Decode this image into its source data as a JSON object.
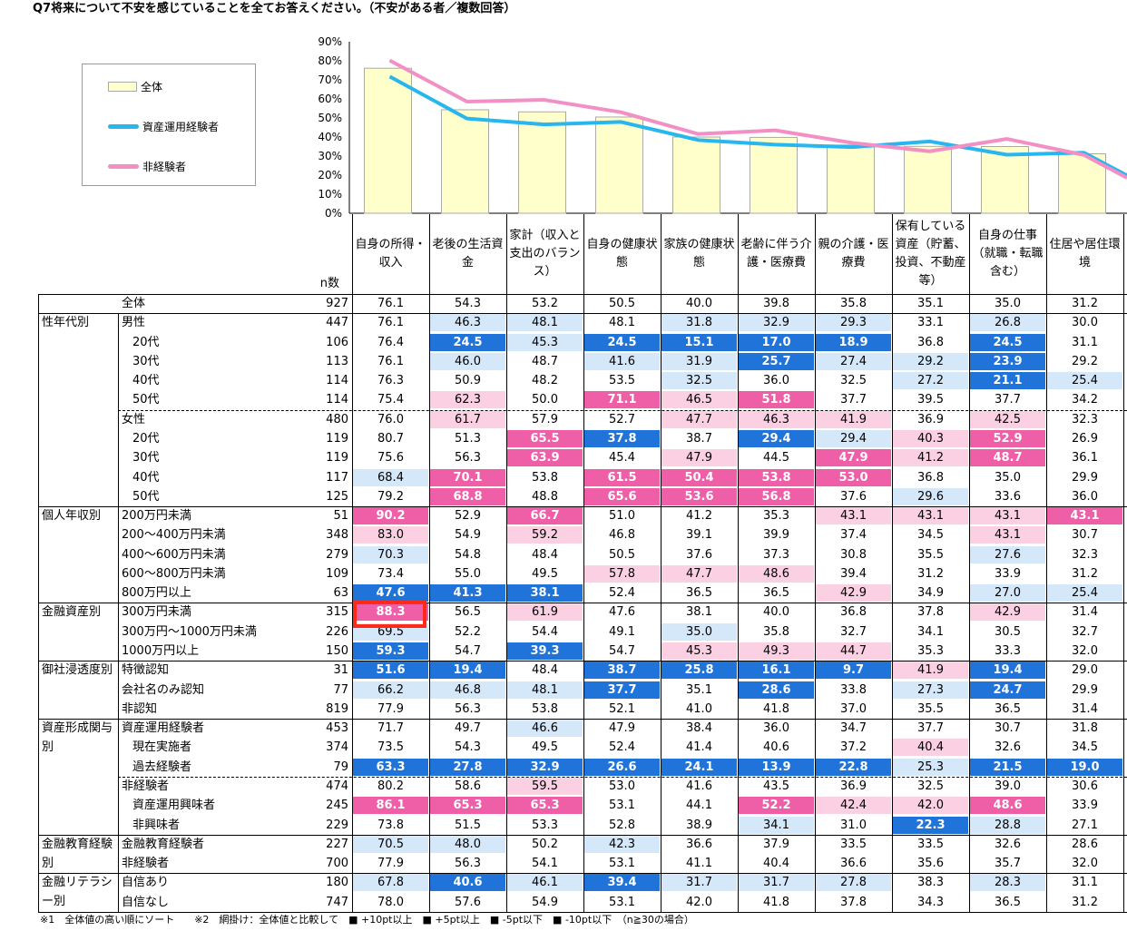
{
  "title": "Q7将来について不安を感じていることを全てお答えください。（不安がある者／複数回答）",
  "legend": {
    "all": "全体",
    "experienced": "資産運用経験者",
    "inexperienced": "非経験者"
  },
  "colors": {
    "bar": "#ffffcc",
    "experienced": "#28b6ef",
    "inexperienced": "#f28fc4",
    "hot1": "#ee5fa7",
    "hot2": "#fbd0e3",
    "cold1": "#d4e8fa",
    "cold2": "#1f73d9"
  },
  "chart_data": {
    "type": "bar",
    "categories": [
      "自身の所得・収入",
      "老後の生活資金",
      "家計（収入と支出のバランス）",
      "自身の健康状態",
      "家族の健康状態",
      "老齢に伴う介護・医療費",
      "親の介護・医療費",
      "保有している資産（貯蓄、投資、不動産等）",
      "自身の仕事（就職・転職含む）",
      "住居や居住環境"
    ],
    "y_ticks": [
      "0%",
      "10%",
      "20%",
      "30%",
      "40%",
      "50%",
      "60%",
      "70%",
      "80%",
      "90%"
    ],
    "ylim": [
      0,
      90
    ],
    "series": [
      {
        "name": "全体",
        "kind": "bar",
        "values": [
          76.1,
          54.3,
          53.2,
          50.5,
          40.0,
          39.8,
          35.8,
          35.1,
          35.0,
          31.2
        ]
      },
      {
        "name": "資産運用経験者",
        "kind": "line",
        "values": [
          71.7,
          49.7,
          46.6,
          47.9,
          38.4,
          36.0,
          34.7,
          37.7,
          30.7,
          31.8
        ]
      },
      {
        "name": "非経験者",
        "kind": "line",
        "values": [
          80.2,
          58.6,
          59.5,
          53.0,
          41.6,
          43.5,
          36.9,
          32.5,
          39.0,
          30.6
        ]
      }
    ]
  },
  "table": {
    "headers": [
      "自身の所得・収入",
      "老後の生活資金",
      "家計（収入と支出のバランス）",
      "自身の健康状態",
      "家族の健康状態",
      "老齢に伴う介護・医療費",
      "親の介護・医療費",
      "保有している資産（貯蓄、投資、不動産等）",
      "自身の仕事（就職・転職含む）",
      "住居や居住環境"
    ],
    "n_label": "n数",
    "rows": [
      {
        "seg": "",
        "sub": "全体",
        "n": "927",
        "v": [
          "76.1",
          "54.3",
          "53.2",
          "50.5",
          "40.0",
          "39.8",
          "35.8",
          "35.1",
          "35.0",
          "31.2"
        ],
        "s": [
          0,
          0,
          0,
          0,
          0,
          0,
          0,
          0,
          0,
          0
        ]
      },
      {
        "seg": "性年代別",
        "sub": "男性",
        "n": "447",
        "v": [
          "76.1",
          "46.3",
          "48.1",
          "48.1",
          "31.8",
          "32.9",
          "29.3",
          "33.1",
          "26.8",
          "30.0"
        ],
        "s": [
          0,
          3,
          3,
          0,
          3,
          3,
          3,
          0,
          3,
          0
        ]
      },
      {
        "seg": "",
        "sub": "20代",
        "n": "106",
        "v": [
          "76.4",
          "24.5",
          "45.3",
          "24.5",
          "15.1",
          "17.0",
          "18.9",
          "36.8",
          "24.5",
          "31.1"
        ],
        "s": [
          0,
          4,
          3,
          4,
          4,
          4,
          4,
          0,
          4,
          0
        ]
      },
      {
        "seg": "",
        "sub": "30代",
        "n": "113",
        "v": [
          "76.1",
          "46.0",
          "48.7",
          "41.6",
          "31.9",
          "25.7",
          "27.4",
          "29.2",
          "23.9",
          "29.2"
        ],
        "s": [
          0,
          3,
          0,
          3,
          3,
          4,
          3,
          3,
          4,
          0
        ]
      },
      {
        "seg": "",
        "sub": "40代",
        "n": "114",
        "v": [
          "76.3",
          "50.9",
          "48.2",
          "53.5",
          "32.5",
          "36.0",
          "32.5",
          "27.2",
          "21.1",
          "25.4"
        ],
        "s": [
          0,
          0,
          0,
          0,
          3,
          0,
          0,
          3,
          4,
          3
        ]
      },
      {
        "seg": "",
        "sub": "50代",
        "n": "114",
        "v": [
          "75.4",
          "62.3",
          "50.0",
          "71.1",
          "46.5",
          "51.8",
          "37.7",
          "39.5",
          "37.7",
          "34.2"
        ],
        "s": [
          0,
          2,
          0,
          1,
          2,
          1,
          0,
          0,
          0,
          0
        ]
      },
      {
        "seg": "",
        "sub": "女性",
        "n": "480",
        "v": [
          "76.0",
          "61.7",
          "57.9",
          "52.7",
          "47.7",
          "46.3",
          "41.9",
          "36.9",
          "42.5",
          "32.3"
        ],
        "s": [
          0,
          2,
          0,
          0,
          2,
          2,
          2,
          0,
          2,
          0
        ]
      },
      {
        "seg": "",
        "sub": "20代",
        "n": "119",
        "v": [
          "80.7",
          "51.3",
          "65.5",
          "37.8",
          "38.7",
          "29.4",
          "29.4",
          "40.3",
          "52.9",
          "26.9"
        ],
        "s": [
          0,
          0,
          1,
          4,
          0,
          4,
          3,
          2,
          1,
          0
        ]
      },
      {
        "seg": "",
        "sub": "30代",
        "n": "119",
        "v": [
          "75.6",
          "56.3",
          "63.9",
          "45.4",
          "47.9",
          "44.5",
          "47.9",
          "41.2",
          "48.7",
          "36.1"
        ],
        "s": [
          0,
          0,
          1,
          0,
          2,
          0,
          1,
          2,
          1,
          0
        ]
      },
      {
        "seg": "",
        "sub": "40代",
        "n": "117",
        "v": [
          "68.4",
          "70.1",
          "53.8",
          "61.5",
          "50.4",
          "53.8",
          "53.0",
          "36.8",
          "35.0",
          "29.9"
        ],
        "s": [
          3,
          1,
          0,
          1,
          1,
          1,
          1,
          0,
          0,
          0
        ]
      },
      {
        "seg": "",
        "sub": "50代",
        "n": "125",
        "v": [
          "79.2",
          "68.8",
          "48.8",
          "65.6",
          "53.6",
          "56.8",
          "37.6",
          "29.6",
          "33.6",
          "36.0"
        ],
        "s": [
          0,
          1,
          0,
          1,
          1,
          1,
          0,
          3,
          0,
          0
        ]
      },
      {
        "seg": "個人年収別",
        "sub": "200万円未満",
        "n": "51",
        "v": [
          "90.2",
          "52.9",
          "66.7",
          "51.0",
          "41.2",
          "35.3",
          "43.1",
          "43.1",
          "43.1",
          "43.1"
        ],
        "s": [
          1,
          0,
          1,
          0,
          0,
          0,
          2,
          2,
          2,
          1
        ]
      },
      {
        "seg": "",
        "sub": "200～400万円未満",
        "n": "348",
        "v": [
          "83.0",
          "54.9",
          "59.2",
          "46.8",
          "39.1",
          "39.9",
          "37.4",
          "34.5",
          "43.1",
          "30.7"
        ],
        "s": [
          2,
          0,
          2,
          0,
          0,
          0,
          0,
          0,
          2,
          0
        ]
      },
      {
        "seg": "",
        "sub": "400～600万円未満",
        "n": "279",
        "v": [
          "70.3",
          "54.8",
          "48.4",
          "50.5",
          "37.6",
          "37.3",
          "30.8",
          "35.5",
          "27.6",
          "32.3"
        ],
        "s": [
          3,
          0,
          0,
          0,
          0,
          0,
          0,
          0,
          3,
          0
        ]
      },
      {
        "seg": "",
        "sub": "600～800万円未満",
        "n": "109",
        "v": [
          "73.4",
          "55.0",
          "49.5",
          "57.8",
          "47.7",
          "48.6",
          "39.4",
          "31.2",
          "33.9",
          "31.2"
        ],
        "s": [
          0,
          0,
          0,
          2,
          2,
          2,
          0,
          0,
          0,
          0
        ]
      },
      {
        "seg": "",
        "sub": "800万円以上",
        "n": "63",
        "v": [
          "47.6",
          "41.3",
          "38.1",
          "52.4",
          "36.5",
          "36.5",
          "42.9",
          "34.9",
          "27.0",
          "25.4"
        ],
        "s": [
          4,
          4,
          4,
          0,
          0,
          0,
          2,
          0,
          3,
          3
        ]
      },
      {
        "seg": "金融資産別",
        "sub": "300万円未満",
        "n": "315",
        "v": [
          "88.3",
          "56.5",
          "61.9",
          "47.6",
          "38.1",
          "40.0",
          "36.8",
          "37.8",
          "42.9",
          "31.4"
        ],
        "s": [
          1,
          0,
          2,
          0,
          0,
          0,
          0,
          0,
          2,
          0
        ]
      },
      {
        "seg": "",
        "sub": "300万円～1000万円未満",
        "n": "226",
        "v": [
          "69.5",
          "52.2",
          "54.4",
          "49.1",
          "35.0",
          "35.8",
          "32.7",
          "34.1",
          "30.5",
          "32.7"
        ],
        "s": [
          3,
          0,
          0,
          0,
          3,
          0,
          0,
          0,
          0,
          0
        ]
      },
      {
        "seg": "",
        "sub": "1000万円以上",
        "n": "150",
        "v": [
          "59.3",
          "54.7",
          "39.3",
          "54.7",
          "45.3",
          "49.3",
          "44.7",
          "35.3",
          "33.3",
          "32.0"
        ],
        "s": [
          4,
          0,
          4,
          0,
          2,
          2,
          2,
          0,
          0,
          0
        ]
      },
      {
        "seg": "御社浸透度別",
        "sub": "特徴認知",
        "n": "31",
        "v": [
          "51.6",
          "19.4",
          "48.4",
          "38.7",
          "25.8",
          "16.1",
          "9.7",
          "41.9",
          "19.4",
          "29.0"
        ],
        "s": [
          4,
          4,
          0,
          4,
          4,
          4,
          4,
          2,
          4,
          0
        ]
      },
      {
        "seg": "",
        "sub": "会社名のみ認知",
        "n": "77",
        "v": [
          "66.2",
          "46.8",
          "48.1",
          "37.7",
          "35.1",
          "28.6",
          "33.8",
          "27.3",
          "24.7",
          "29.9"
        ],
        "s": [
          3,
          3,
          3,
          4,
          0,
          4,
          0,
          3,
          4,
          0
        ]
      },
      {
        "seg": "",
        "sub": "非認知",
        "n": "819",
        "v": [
          "77.9",
          "56.3",
          "53.8",
          "52.1",
          "41.0",
          "41.8",
          "37.0",
          "35.5",
          "36.5",
          "31.4"
        ],
        "s": [
          0,
          0,
          0,
          0,
          0,
          0,
          0,
          0,
          0,
          0
        ]
      },
      {
        "seg": "資産形成関与別",
        "sub": "資産運用経験者",
        "n": "453",
        "v": [
          "71.7",
          "49.7",
          "46.6",
          "47.9",
          "38.4",
          "36.0",
          "34.7",
          "37.7",
          "30.7",
          "31.8"
        ],
        "s": [
          0,
          0,
          3,
          0,
          0,
          0,
          0,
          0,
          0,
          0
        ]
      },
      {
        "seg": "",
        "sub": "現在実施者",
        "n": "374",
        "v": [
          "73.5",
          "54.3",
          "49.5",
          "52.4",
          "41.4",
          "40.6",
          "37.2",
          "40.4",
          "32.6",
          "34.5"
        ],
        "s": [
          0,
          0,
          0,
          0,
          0,
          0,
          0,
          2,
          0,
          0
        ]
      },
      {
        "seg": "",
        "sub": "過去経験者",
        "n": "79",
        "v": [
          "63.3",
          "27.8",
          "32.9",
          "26.6",
          "24.1",
          "13.9",
          "22.8",
          "25.3",
          "21.5",
          "19.0"
        ],
        "s": [
          4,
          4,
          4,
          4,
          4,
          4,
          4,
          3,
          4,
          4
        ]
      },
      {
        "seg": "",
        "sub": "非経験者",
        "n": "474",
        "v": [
          "80.2",
          "58.6",
          "59.5",
          "53.0",
          "41.6",
          "43.5",
          "36.9",
          "32.5",
          "39.0",
          "30.6"
        ],
        "s": [
          0,
          0,
          2,
          0,
          0,
          0,
          0,
          0,
          0,
          0
        ]
      },
      {
        "seg": "",
        "sub": "資産運用興味者",
        "n": "245",
        "v": [
          "86.1",
          "65.3",
          "65.3",
          "53.1",
          "44.1",
          "52.2",
          "42.4",
          "42.0",
          "48.6",
          "33.9"
        ],
        "s": [
          1,
          1,
          1,
          0,
          0,
          1,
          2,
          2,
          1,
          0
        ]
      },
      {
        "seg": "",
        "sub": "非興味者",
        "n": "229",
        "v": [
          "73.8",
          "51.5",
          "53.3",
          "52.8",
          "38.9",
          "34.1",
          "31.0",
          "22.3",
          "28.8",
          "27.1"
        ],
        "s": [
          0,
          0,
          0,
          0,
          0,
          3,
          0,
          4,
          3,
          0
        ]
      },
      {
        "seg": "金融教育経験別",
        "sub": "金融教育経験者",
        "n": "227",
        "v": [
          "70.5",
          "48.0",
          "50.2",
          "42.3",
          "36.6",
          "37.9",
          "33.5",
          "33.5",
          "32.6",
          "28.6"
        ],
        "s": [
          3,
          3,
          0,
          3,
          0,
          0,
          0,
          0,
          0,
          0
        ]
      },
      {
        "seg": "",
        "sub": "非経験者",
        "n": "700",
        "v": [
          "77.9",
          "56.3",
          "54.1",
          "53.1",
          "41.1",
          "40.4",
          "36.6",
          "35.6",
          "35.7",
          "32.0"
        ],
        "s": [
          0,
          0,
          0,
          0,
          0,
          0,
          0,
          0,
          0,
          0
        ]
      },
      {
        "seg": "金融リテラシー別",
        "sub": "自信あり",
        "n": "180",
        "v": [
          "67.8",
          "40.6",
          "46.1",
          "39.4",
          "31.7",
          "31.7",
          "27.8",
          "38.3",
          "28.3",
          "31.1"
        ],
        "s": [
          3,
          4,
          3,
          4,
          3,
          3,
          3,
          0,
          3,
          0
        ]
      },
      {
        "seg": "",
        "sub": "自信なし",
        "n": "747",
        "v": [
          "78.0",
          "57.6",
          "54.9",
          "53.1",
          "42.0",
          "41.8",
          "37.8",
          "34.3",
          "36.5",
          "31.2"
        ],
        "s": [
          0,
          0,
          0,
          0,
          0,
          0,
          0,
          0,
          0,
          0
        ]
      }
    ]
  },
  "footnote": "※1　全体値の高い順にソート　　※2　網掛け：全体値と比較して　■ +10pt以上　■ +5pt以上　■ -5pt以下　■ -10pt以下　（n≧30の場合）"
}
